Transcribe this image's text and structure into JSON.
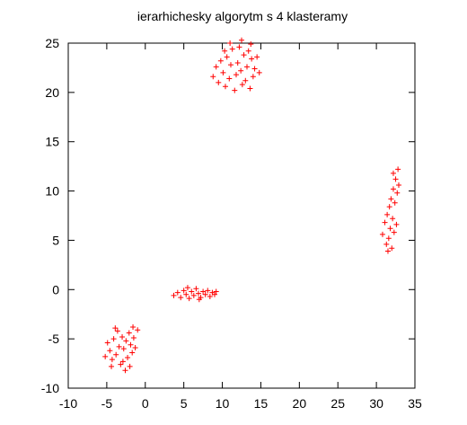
{
  "chart_data": {
    "type": "scatter",
    "title": "ierarhichesky algorytm s 4 klasteramy",
    "xlabel": "",
    "ylabel": "",
    "xlim": [
      -10,
      35
    ],
    "ylim": [
      -10,
      25
    ],
    "x_ticks": [
      -10,
      -5,
      0,
      5,
      10,
      15,
      20,
      25,
      30,
      35
    ],
    "y_ticks": [
      -10,
      -5,
      0,
      5,
      10,
      15,
      20,
      25
    ],
    "grid": false,
    "legend": "none",
    "point_color": "#ff0000",
    "marker": "plus",
    "clusters": [
      {
        "points": [
          [
            -5.2,
            -6.8
          ],
          [
            -4.9,
            -5.4
          ],
          [
            -4.6,
            -6.2
          ],
          [
            -4.3,
            -7.1
          ],
          [
            -4.1,
            -5.0
          ],
          [
            -3.8,
            -6.6
          ],
          [
            -3.6,
            -4.2
          ],
          [
            -3.4,
            -5.8
          ],
          [
            -3.2,
            -7.6
          ],
          [
            -3.0,
            -4.8
          ],
          [
            -2.8,
            -6.0
          ],
          [
            -2.6,
            -8.2
          ],
          [
            -2.5,
            -5.2
          ],
          [
            -2.3,
            -6.9
          ],
          [
            -2.1,
            -4.4
          ],
          [
            -1.9,
            -5.6
          ],
          [
            -1.7,
            -6.4
          ],
          [
            -1.5,
            -4.9
          ],
          [
            -1.3,
            -5.9
          ],
          [
            -1.6,
            -3.8
          ],
          [
            -3.9,
            -3.9
          ],
          [
            -4.4,
            -7.8
          ],
          [
            -2.9,
            -7.3
          ],
          [
            -2.0,
            -7.8
          ],
          [
            -1.0,
            -4.1
          ]
        ]
      },
      {
        "points": [
          [
            3.7,
            -0.6
          ],
          [
            4.2,
            -0.3
          ],
          [
            4.6,
            -0.8
          ],
          [
            5.0,
            -0.1
          ],
          [
            5.3,
            -0.5
          ],
          [
            5.7,
            -0.9
          ],
          [
            6.0,
            -0.2
          ],
          [
            6.3,
            -0.6
          ],
          [
            6.6,
            0.1
          ],
          [
            6.9,
            -0.4
          ],
          [
            7.2,
            -0.8
          ],
          [
            7.5,
            -0.2
          ],
          [
            7.8,
            -0.5
          ],
          [
            8.1,
            -0.1
          ],
          [
            8.4,
            -0.7
          ],
          [
            8.7,
            -0.3
          ],
          [
            9.0,
            -0.5
          ],
          [
            9.2,
            -0.2
          ],
          [
            5.5,
            0.2
          ],
          [
            7.0,
            -1.0
          ]
        ]
      },
      {
        "points": [
          [
            8.8,
            21.6
          ],
          [
            9.2,
            22.6
          ],
          [
            9.5,
            21.0
          ],
          [
            9.8,
            23.2
          ],
          [
            10.1,
            22.0
          ],
          [
            10.4,
            20.6
          ],
          [
            10.6,
            23.6
          ],
          [
            10.9,
            21.4
          ],
          [
            11.1,
            22.8
          ],
          [
            11.3,
            24.4
          ],
          [
            11.6,
            20.2
          ],
          [
            11.8,
            21.8
          ],
          [
            12.0,
            23.0
          ],
          [
            12.2,
            24.6
          ],
          [
            12.4,
            22.2
          ],
          [
            12.6,
            20.8
          ],
          [
            12.8,
            23.8
          ],
          [
            13.0,
            21.2
          ],
          [
            13.2,
            22.6
          ],
          [
            13.4,
            24.2
          ],
          [
            13.6,
            20.4
          ],
          [
            13.8,
            23.4
          ],
          [
            14.0,
            21.6
          ],
          [
            14.2,
            22.4
          ],
          [
            14.5,
            23.6
          ],
          [
            14.8,
            22.0
          ],
          [
            11.0,
            25.0
          ],
          [
            12.5,
            25.3
          ],
          [
            13.7,
            24.9
          ],
          [
            10.3,
            24.2
          ]
        ]
      },
      {
        "points": [
          [
            30.8,
            5.6
          ],
          [
            31.1,
            6.8
          ],
          [
            31.3,
            4.6
          ],
          [
            31.4,
            7.6
          ],
          [
            31.6,
            5.2
          ],
          [
            31.7,
            8.4
          ],
          [
            31.8,
            6.2
          ],
          [
            31.9,
            9.2
          ],
          [
            32.0,
            4.2
          ],
          [
            32.1,
            7.2
          ],
          [
            32.2,
            10.2
          ],
          [
            32.3,
            5.8
          ],
          [
            32.4,
            8.8
          ],
          [
            32.5,
            11.2
          ],
          [
            32.6,
            6.6
          ],
          [
            32.7,
            9.8
          ],
          [
            32.8,
            12.2
          ],
          [
            32.9,
            10.6
          ],
          [
            31.5,
            3.9
          ],
          [
            32.2,
            11.8
          ]
        ]
      }
    ]
  }
}
